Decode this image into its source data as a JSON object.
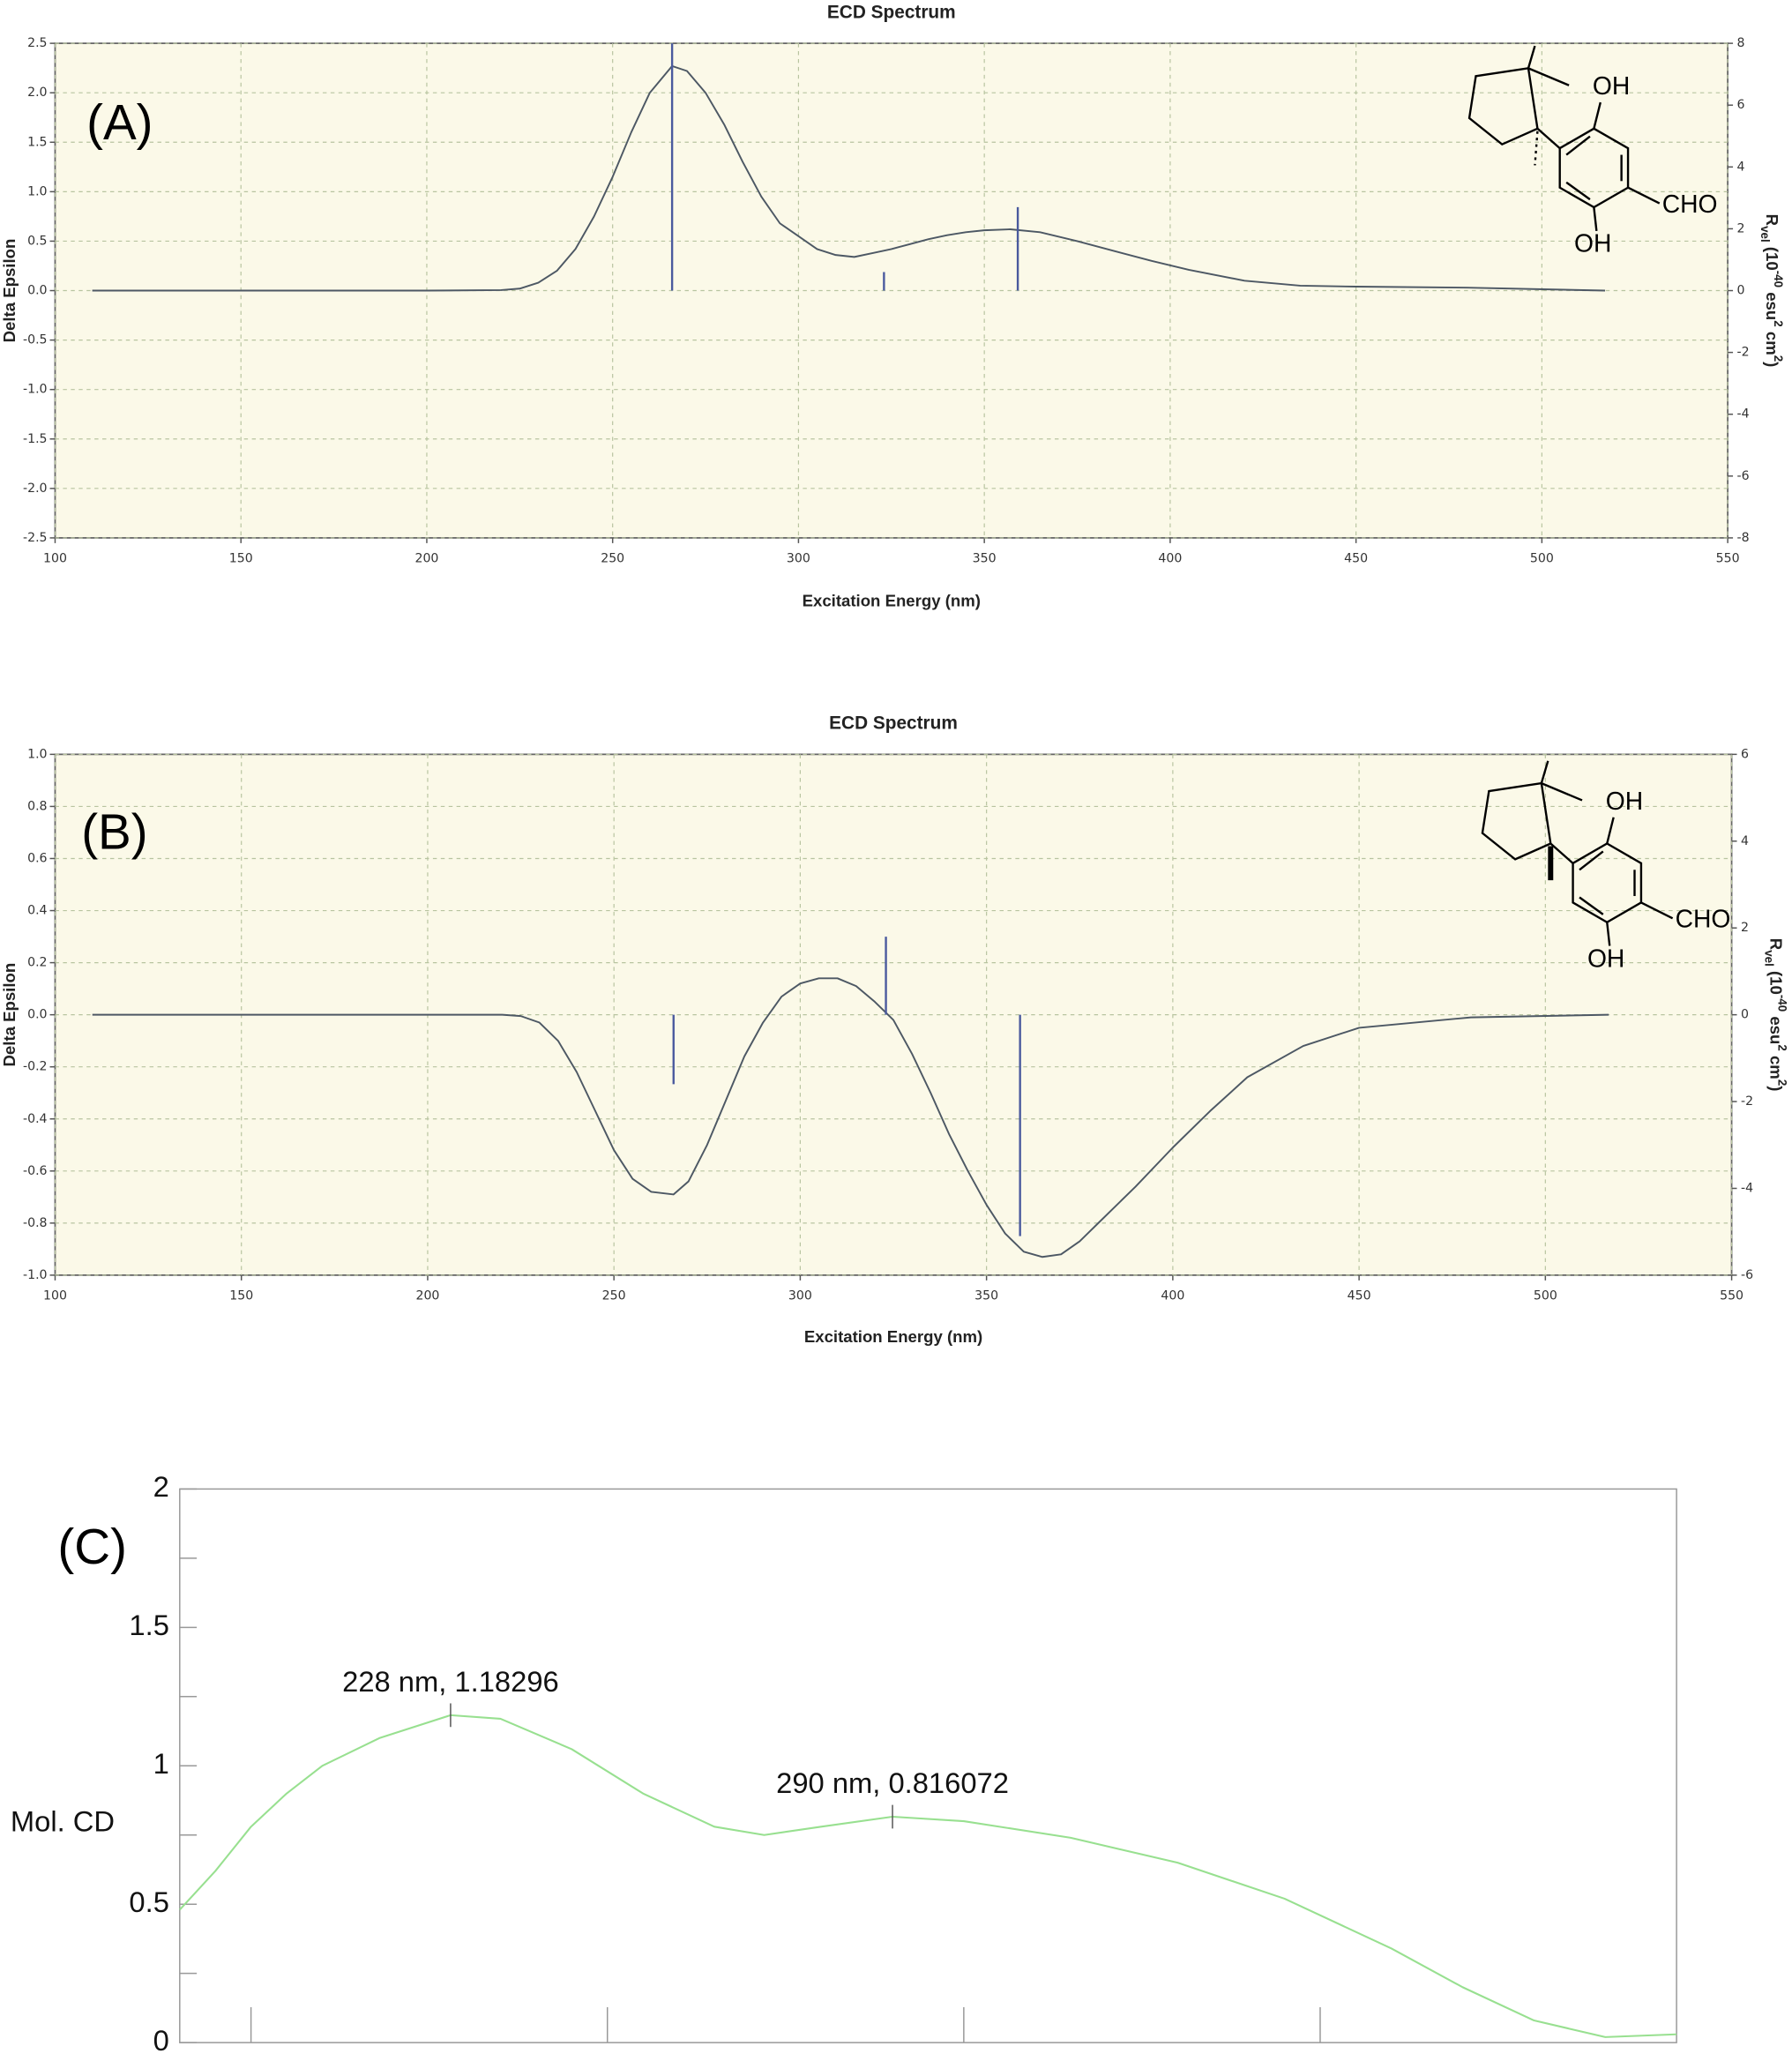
{
  "chart_data": [
    {
      "type": "line",
      "title": "ECD Spectrum",
      "panel_label": "(A)",
      "xlabel": "Excitation Energy (nm)",
      "ylabel": "Delta Epsilon",
      "y2label": [
        "R",
        "vel",
        " (10",
        "-40",
        " esu",
        "2",
        " cm",
        "2",
        ")"
      ],
      "structure_labels": [
        "OH",
        "CHO",
        "OH"
      ],
      "background": "#fbf9e8",
      "grid": true,
      "xlim": [
        100,
        550
      ],
      "xticks": [
        100,
        150,
        200,
        250,
        300,
        350,
        400,
        450,
        500,
        550
      ],
      "ylim": [
        -2.5,
        2.5
      ],
      "yticks": [
        2.5,
        {
          "value": 2,
          "label": "2.0"
        },
        1.5,
        {
          "value": 1,
          "label": "1.0"
        },
        0.5,
        {
          "value": 0,
          "label": "0.0"
        },
        -0.5,
        {
          "value": -1,
          "label": "-1.0"
        },
        -1.5,
        {
          "value": -2,
          "label": "-2.0"
        },
        -2.5
      ],
      "y2lim": [
        -8,
        8
      ],
      "y2ticks": [
        8,
        6,
        4,
        2,
        0,
        -2,
        -4,
        -6,
        -8
      ],
      "series": [
        {
          "color": "#4d5864",
          "x": [
            110,
            150,
            200,
            220,
            225,
            230,
            235,
            240,
            245,
            250,
            255,
            260,
            266,
            270,
            275,
            280,
            285,
            290,
            295,
            300,
            305,
            310,
            315,
            320,
            325,
            330,
            335,
            340,
            345,
            350,
            357,
            365,
            375,
            385,
            395,
            405,
            420,
            435,
            450,
            480,
            517
          ],
          "values": [
            0,
            0,
            0,
            0.005,
            0.02,
            0.08,
            0.2,
            0.42,
            0.75,
            1.15,
            1.6,
            2.0,
            2.27,
            2.22,
            2.0,
            1.68,
            1.3,
            0.95,
            0.68,
            0.55,
            0.42,
            0.36,
            0.34,
            0.38,
            0.42,
            0.47,
            0.52,
            0.56,
            0.59,
            0.61,
            0.62,
            0.59,
            0.5,
            0.4,
            0.3,
            0.21,
            0.1,
            0.05,
            0.04,
            0.03,
            0
          ]
        },
        {
          "style": "sticks",
          "axis": "y2",
          "color": "#4a5a9e",
          "x": [
            266,
            323,
            359
          ],
          "values": [
            8,
            0.6,
            2.7
          ]
        }
      ]
    },
    {
      "type": "line",
      "title": "ECD Spectrum",
      "panel_label": "(B)",
      "xlabel": "Excitation Energy (nm)",
      "ylabel": "Delta Epsilon",
      "y2label": [
        "R",
        "vel",
        " (10",
        "-40",
        " esu",
        "2",
        " cm",
        "2",
        ")"
      ],
      "structure_labels": [
        "OH",
        "CHO",
        "OH"
      ],
      "background": "#fbf9e8",
      "grid": true,
      "xlim": [
        100,
        550
      ],
      "xticks": [
        100,
        150,
        200,
        250,
        300,
        350,
        400,
        450,
        500,
        550
      ],
      "ylim": [
        -1,
        1
      ],
      "yticks": [
        {
          "value": 1,
          "label": "1.0"
        },
        0.8,
        0.6,
        0.4,
        0.2,
        {
          "value": 0,
          "label": "0.0"
        },
        -0.2,
        -0.4,
        -0.6,
        -0.8,
        {
          "value": -1,
          "label": "-1.0"
        }
      ],
      "y2lim": [
        -6,
        6
      ],
      "y2ticks": [
        6,
        4,
        2,
        0,
        -2,
        -4,
        -6
      ],
      "series": [
        {
          "color": "#4d5864",
          "x": [
            110,
            150,
            200,
            220,
            225,
            230,
            235,
            240,
            245,
            250,
            255,
            260,
            266,
            270,
            275,
            280,
            285,
            290,
            295,
            300,
            305,
            310,
            315,
            320,
            325,
            330,
            335,
            340,
            345,
            350,
            355,
            360,
            365,
            370,
            375,
            380,
            390,
            400,
            410,
            420,
            435,
            450,
            480,
            517
          ],
          "values": [
            0,
            0,
            0,
            0,
            -0.005,
            -0.03,
            -0.1,
            -0.22,
            -0.37,
            -0.52,
            -0.63,
            -0.68,
            -0.69,
            -0.64,
            -0.5,
            -0.33,
            -0.16,
            -0.03,
            0.07,
            0.12,
            0.14,
            0.14,
            0.11,
            0.05,
            -0.02,
            -0.15,
            -0.3,
            -0.46,
            -0.6,
            -0.73,
            -0.84,
            -0.91,
            -0.93,
            -0.92,
            -0.87,
            -0.8,
            -0.66,
            -0.51,
            -0.37,
            -0.24,
            -0.12,
            -0.05,
            -0.01,
            0
          ]
        },
        {
          "style": "sticks",
          "axis": "y2",
          "color": "#4a5a9e",
          "x": [
            266,
            323,
            359
          ],
          "values": [
            -1.6,
            1.8,
            -5.1
          ]
        }
      ]
    },
    {
      "type": "line",
      "panel_label": "(C)",
      "ylabel": "Mol. CD",
      "background": "#ffffff",
      "grid": false,
      "xtick_labels": false,
      "xlim": [
        190,
        400
      ],
      "xticks": [
        200,
        250,
        300,
        350
      ],
      "ylim": [
        0,
        2
      ],
      "yticks": [
        0,
        0.5,
        1,
        1.5,
        2
      ],
      "yminorticks": [
        0.25,
        0.75,
        1.25,
        1.75
      ],
      "series": [
        {
          "color": "#98e090",
          "x": [
            190,
            195,
            200,
            205,
            210,
            218,
            228,
            235,
            245,
            255,
            265,
            272,
            280,
            290,
            300,
            315,
            330,
            345,
            360,
            370,
            380,
            390,
            400
          ],
          "values": [
            0.48,
            0.62,
            0.78,
            0.9,
            1.0,
            1.1,
            1.18296,
            1.17,
            1.06,
            0.9,
            0.78,
            0.75,
            0.78,
            0.816072,
            0.8,
            0.74,
            0.65,
            0.52,
            0.34,
            0.2,
            0.08,
            0.02,
            0.03
          ]
        }
      ],
      "annotations": [
        {
          "label": "228 nm, 1.18296",
          "x": 228,
          "y": 1.18296
        },
        {
          "label": "290 nm, 0.816072",
          "x": 290,
          "y": 0.816072
        }
      ]
    }
  ]
}
